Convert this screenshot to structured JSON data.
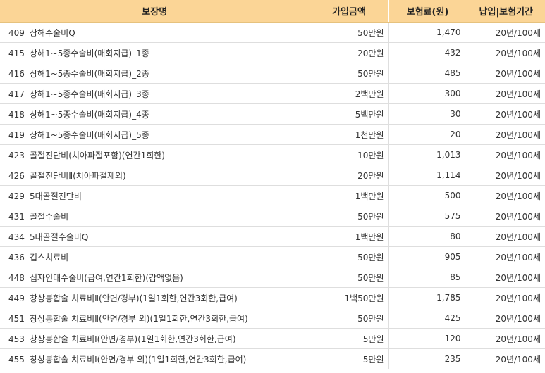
{
  "table": {
    "headers": [
      "보장명",
      "가입금액",
      "보험료(원)",
      "납입|보험기간"
    ],
    "rows": [
      {
        "code": "409",
        "name": "상해수술비Q",
        "amount": "50만원",
        "premium": "1,470",
        "term": "20년/100세"
      },
      {
        "code": "415",
        "name": "상해1~5종수술비(매회지급)_1종",
        "amount": "20만원",
        "premium": "432",
        "term": "20년/100세"
      },
      {
        "code": "416",
        "name": "상해1~5종수술비(매회지급)_2종",
        "amount": "50만원",
        "premium": "485",
        "term": "20년/100세"
      },
      {
        "code": "417",
        "name": "상해1~5종수술비(매회지급)_3종",
        "amount": "2백만원",
        "premium": "300",
        "term": "20년/100세"
      },
      {
        "code": "418",
        "name": "상해1~5종수술비(매회지급)_4종",
        "amount": "5백만원",
        "premium": "30",
        "term": "20년/100세"
      },
      {
        "code": "419",
        "name": "상해1~5종수술비(매회지급)_5종",
        "amount": "1천만원",
        "premium": "20",
        "term": "20년/100세"
      },
      {
        "code": "423",
        "name": "골절진단비(치아파절포함)(연간1회한)",
        "amount": "10만원",
        "premium": "1,013",
        "term": "20년/100세"
      },
      {
        "code": "426",
        "name": "골절진단비Ⅱ(치아파절제외)",
        "amount": "20만원",
        "premium": "1,114",
        "term": "20년/100세"
      },
      {
        "code": "429",
        "name": "5대골절진단비",
        "amount": "1백만원",
        "premium": "500",
        "term": "20년/100세"
      },
      {
        "code": "431",
        "name": "골절수술비",
        "amount": "50만원",
        "premium": "575",
        "term": "20년/100세"
      },
      {
        "code": "434",
        "name": "5대골절수술비Q",
        "amount": "1백만원",
        "premium": "80",
        "term": "20년/100세"
      },
      {
        "code": "436",
        "name": "깁스치료비",
        "amount": "50만원",
        "premium": "905",
        "term": "20년/100세"
      },
      {
        "code": "448",
        "name": "십자인대수술비(급여,연간1회한)(감액없음)",
        "amount": "50만원",
        "premium": "85",
        "term": "20년/100세"
      },
      {
        "code": "449",
        "name": "창상봉합술 치료비Ⅱ(안면/경부)(1일1회한,연간3회한,급여)",
        "amount": "1백50만원",
        "premium": "1,785",
        "term": "20년/100세"
      },
      {
        "code": "451",
        "name": "창상봉합술 치료비Ⅱ(안면/경부 외)(1일1회한,연간3회한,급여)",
        "amount": "50만원",
        "premium": "425",
        "term": "20년/100세"
      },
      {
        "code": "453",
        "name": "창상봉합술 치료비Ⅰ(안면/경부)(1일1회한,연간3회한,급여)",
        "amount": "5만원",
        "premium": "120",
        "term": "20년/100세"
      },
      {
        "code": "455",
        "name": "창상봉합술 치료비Ⅰ(안면/경부 외)(1일1회한,연간3회한,급여)",
        "amount": "5만원",
        "premium": "235",
        "term": "20년/100세"
      }
    ]
  }
}
